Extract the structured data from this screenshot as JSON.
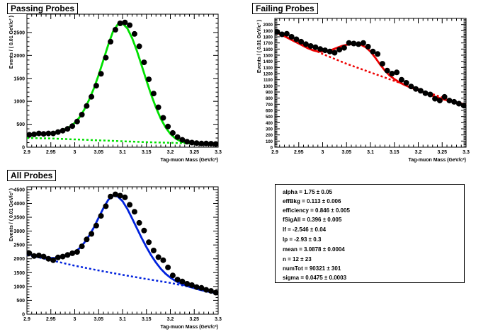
{
  "chart_data": [
    {
      "type": "scatter",
      "title": "Passing Probes",
      "xlabel": "Tag-muon Mass (GeV/c²)",
      "ylabel": "Events / ( 0.01 GeV/c² )",
      "xlim": [
        2.9,
        3.3
      ],
      "ylim": [
        0,
        2900
      ],
      "xticks": [
        2.9,
        2.95,
        3.0,
        3.05,
        3.1,
        3.15,
        3.2,
        3.25,
        3.3
      ],
      "xticklabels": [
        "2.9",
        "2.95",
        "3",
        "3.05",
        "3.1",
        "3.15",
        "3.2",
        "3.25",
        "3.3"
      ],
      "yticks": [
        0,
        500,
        1000,
        1500,
        2000,
        2500
      ],
      "yticklabels": [
        "0",
        "500",
        "1000",
        "1500",
        "2000",
        "2500"
      ],
      "fit_color": "#00e000",
      "series": [
        {
          "kind": "data",
          "x": [
            2.905,
            2.915,
            2.925,
            2.935,
            2.945,
            2.955,
            2.965,
            2.975,
            2.985,
            2.995,
            3.005,
            3.015,
            3.025,
            3.035,
            3.045,
            3.055,
            3.065,
            3.075,
            3.085,
            3.095,
            3.105,
            3.115,
            3.125,
            3.135,
            3.145,
            3.155,
            3.165,
            3.175,
            3.185,
            3.195,
            3.205,
            3.215,
            3.225,
            3.235,
            3.245,
            3.255,
            3.265,
            3.275,
            3.285,
            3.295
          ],
          "y": [
            270,
            280,
            300,
            290,
            300,
            300,
            330,
            360,
            400,
            460,
            560,
            710,
            900,
            1100,
            1340,
            1600,
            1950,
            2300,
            2560,
            2700,
            2720,
            2660,
            2470,
            2200,
            1850,
            1480,
            1170,
            870,
            640,
            450,
            310,
            220,
            160,
            120,
            100,
            90,
            80,
            80,
            75,
            70
          ]
        },
        {
          "kind": "fit",
          "x": [
            2.9,
            2.91,
            2.92,
            2.93,
            2.94,
            2.95,
            2.96,
            2.97,
            2.98,
            2.99,
            3.0,
            3.01,
            3.02,
            3.03,
            3.04,
            3.05,
            3.06,
            3.07,
            3.08,
            3.09,
            3.1,
            3.11,
            3.12,
            3.13,
            3.14,
            3.15,
            3.16,
            3.17,
            3.18,
            3.19,
            3.2,
            3.21,
            3.22,
            3.23,
            3.24,
            3.25,
            3.26,
            3.27,
            3.28,
            3.29,
            3.3
          ],
          "y": [
            270,
            275,
            280,
            288,
            298,
            310,
            328,
            355,
            395,
            450,
            530,
            650,
            820,
            1030,
            1280,
            1570,
            1900,
            2230,
            2520,
            2680,
            2700,
            2590,
            2380,
            2100,
            1780,
            1450,
            1140,
            860,
            620,
            430,
            290,
            195,
            135,
            100,
            85,
            78,
            74,
            72,
            70,
            68,
            67
          ]
        },
        {
          "kind": "background",
          "x": [
            2.9,
            2.95,
            3.0,
            3.05,
            3.1,
            3.15,
            3.2,
            3.25,
            3.3
          ],
          "y": [
            200,
            190,
            170,
            150,
            130,
            110,
            95,
            80,
            70
          ]
        }
      ]
    },
    {
      "type": "scatter",
      "title": "Failing Probes",
      "xlabel": "Tag-muon Mass (GeV/c²)",
      "ylabel": "Events / ( 0.01 GeV/c² )",
      "xlim": [
        2.9,
        3.3
      ],
      "ylim": [
        0,
        2100
      ],
      "xticks": [
        2.9,
        2.95,
        3.0,
        3.05,
        3.1,
        3.15,
        3.2,
        3.25,
        3.3
      ],
      "xticklabels": [
        "2.9",
        "2.95",
        "3",
        "3.05",
        "3.1",
        "3.15",
        "3.2",
        "3.25",
        "3.3"
      ],
      "yticks": [
        0,
        100,
        200,
        300,
        400,
        500,
        600,
        700,
        800,
        900,
        1000,
        1100,
        1200,
        1300,
        1400,
        1500,
        1600,
        1700,
        1800,
        1900,
        2000
      ],
      "yticklabels": [
        "0",
        "100",
        "200",
        "300",
        "400",
        "500",
        "600",
        "700",
        "800",
        "900",
        "1000",
        "1100",
        "1200",
        "1300",
        "1400",
        "1500",
        "1600",
        "1700",
        "1800",
        "1900",
        "2000"
      ],
      "fit_color": "#ee0000",
      "series": [
        {
          "kind": "data",
          "x": [
            2.905,
            2.915,
            2.925,
            2.935,
            2.945,
            2.955,
            2.965,
            2.975,
            2.985,
            2.995,
            3.005,
            3.015,
            3.025,
            3.035,
            3.045,
            3.055,
            3.065,
            3.075,
            3.085,
            3.095,
            3.105,
            3.115,
            3.125,
            3.135,
            3.145,
            3.155,
            3.165,
            3.175,
            3.185,
            3.195,
            3.205,
            3.215,
            3.225,
            3.235,
            3.245,
            3.255,
            3.265,
            3.275,
            3.285,
            3.295
          ],
          "y": [
            1880,
            1840,
            1850,
            1800,
            1760,
            1720,
            1680,
            1650,
            1630,
            1600,
            1580,
            1560,
            1540,
            1590,
            1620,
            1700,
            1690,
            1680,
            1700,
            1640,
            1560,
            1520,
            1360,
            1250,
            1200,
            1220,
            1100,
            1050,
            990,
            950,
            920,
            880,
            860,
            790,
            760,
            820,
            760,
            740,
            710,
            680
          ]
        },
        {
          "kind": "fit",
          "x": [
            2.9,
            2.91,
            2.92,
            2.93,
            2.94,
            2.95,
            2.96,
            2.97,
            2.98,
            2.99,
            3.0,
            3.01,
            3.02,
            3.03,
            3.04,
            3.05,
            3.06,
            3.07,
            3.08,
            3.09,
            3.1,
            3.11,
            3.12,
            3.13,
            3.14,
            3.15,
            3.16,
            3.17,
            3.18,
            3.19,
            3.2,
            3.21,
            3.22,
            3.23,
            3.24,
            3.25,
            3.26,
            3.27,
            3.28,
            3.29,
            3.3
          ],
          "y": [
            1890,
            1850,
            1810,
            1770,
            1730,
            1690,
            1650,
            1610,
            1580,
            1560,
            1560,
            1570,
            1590,
            1620,
            1650,
            1670,
            1680,
            1680,
            1670,
            1630,
            1560,
            1460,
            1350,
            1250,
            1170,
            1110,
            1060,
            1020,
            985,
            955,
            925,
            895,
            865,
            835,
            810,
            785,
            765,
            745,
            725,
            705,
            690
          ]
        },
        {
          "kind": "background",
          "x": [
            2.9,
            2.95,
            3.0,
            3.05,
            3.1,
            3.15,
            3.2,
            3.25,
            3.3
          ],
          "y": [
            1880,
            1700,
            1520,
            1360,
            1220,
            1080,
            950,
            810,
            690
          ]
        }
      ]
    },
    {
      "type": "scatter",
      "title": "All Probes",
      "xlabel": "Tag-muon Mass (GeV/c²)",
      "ylabel": "Events / ( 0.01 GeV/c² )",
      "xlim": [
        2.9,
        3.3
      ],
      "ylim": [
        0,
        4600
      ],
      "xticks": [
        2.9,
        2.95,
        3.0,
        3.05,
        3.1,
        3.15,
        3.2,
        3.25,
        3.3
      ],
      "xticklabels": [
        "2.9",
        "2.95",
        "3",
        "3.05",
        "3.1",
        "3.15",
        "3.2",
        "3.25",
        "3.3"
      ],
      "yticks": [
        0,
        500,
        1000,
        1500,
        2000,
        2500,
        3000,
        3500,
        4000,
        4500
      ],
      "yticklabels": [
        "0",
        "500",
        "1000",
        "1500",
        "2000",
        "2500",
        "3000",
        "3500",
        "4000",
        "4500"
      ],
      "fit_color": "#0022dd",
      "series": [
        {
          "kind": "data",
          "x": [
            2.905,
            2.915,
            2.925,
            2.935,
            2.945,
            2.955,
            2.965,
            2.975,
            2.985,
            2.995,
            3.005,
            3.015,
            3.025,
            3.035,
            3.045,
            3.055,
            3.065,
            3.075,
            3.085,
            3.095,
            3.105,
            3.115,
            3.125,
            3.135,
            3.145,
            3.155,
            3.165,
            3.175,
            3.185,
            3.195,
            3.205,
            3.215,
            3.225,
            3.235,
            3.245,
            3.255,
            3.265,
            3.275,
            3.285,
            3.295
          ],
          "y": [
            2200,
            2100,
            2120,
            2080,
            2000,
            1950,
            2050,
            2080,
            2140,
            2200,
            2250,
            2450,
            2700,
            2900,
            3200,
            3550,
            3900,
            4250,
            4330,
            4280,
            4220,
            3950,
            3700,
            3300,
            3020,
            2600,
            2300,
            2060,
            1950,
            1690,
            1400,
            1250,
            1180,
            1100,
            1050,
            980,
            950,
            880,
            840,
            780
          ]
        },
        {
          "kind": "fit",
          "x": [
            2.9,
            2.91,
            2.92,
            2.93,
            2.94,
            2.95,
            2.96,
            2.97,
            2.98,
            2.99,
            3.0,
            3.01,
            3.02,
            3.03,
            3.04,
            3.05,
            3.06,
            3.07,
            3.08,
            3.09,
            3.1,
            3.11,
            3.12,
            3.13,
            3.14,
            3.15,
            3.16,
            3.17,
            3.18,
            3.19,
            3.2,
            3.21,
            3.22,
            3.23,
            3.24,
            3.25,
            3.26,
            3.27,
            3.28,
            3.29,
            3.3
          ],
          "y": [
            2170,
            2140,
            2110,
            2080,
            2050,
            2030,
            2030,
            2050,
            2090,
            2150,
            2240,
            2380,
            2580,
            2830,
            3130,
            3480,
            3830,
            4130,
            4280,
            4250,
            4080,
            3800,
            3460,
            3100,
            2750,
            2420,
            2120,
            1860,
            1640,
            1460,
            1320,
            1210,
            1120,
            1050,
            990,
            940,
            890,
            850,
            810,
            780,
            750
          ]
        },
        {
          "kind": "background",
          "x": [
            2.9,
            2.95,
            3.0,
            3.05,
            3.1,
            3.15,
            3.2,
            3.25,
            3.3
          ],
          "y": [
            2150,
            1950,
            1750,
            1580,
            1420,
            1270,
            1130,
            950,
            760
          ]
        }
      ]
    }
  ],
  "parameters": [
    {
      "text": "alpha =  1.75  ± 0.05"
    },
    {
      "text": "effBkg =  0.113  ± 0.006"
    },
    {
      "text": "efficiency =  0.846  ± 0.005"
    },
    {
      "text": "fSigAll =  0.396  ± 0.005"
    },
    {
      "text": "lf =  -2.546  ± 0.04"
    },
    {
      "text": "lp =  -2.93  ± 0.3"
    },
    {
      "text": "mean =  3.0878  ± 0.0004"
    },
    {
      "text": "n =  12  ± 23"
    },
    {
      "text": "numTot =  90321  ± 301"
    },
    {
      "text": "sigma =  0.0475  ± 0.0003"
    }
  ]
}
